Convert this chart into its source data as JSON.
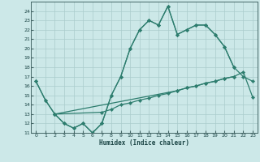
{
  "xlabel": "Humidex (Indice chaleur)",
  "x": [
    0,
    1,
    2,
    3,
    4,
    5,
    6,
    7,
    8,
    9,
    10,
    11,
    12,
    13,
    14,
    15,
    16,
    17,
    18,
    19,
    20,
    21,
    22,
    23
  ],
  "line_upper1": [
    16.5,
    14.5,
    13.0,
    12.0,
    11.5,
    12.0,
    11.0,
    12.0,
    15.0,
    17.0,
    20.0,
    22.0,
    23.0,
    22.5,
    24.5,
    21.5,
    22.0,
    22.5,
    22.5,
    21.5,
    20.2,
    18.0,
    null,
    null
  ],
  "line_upper2": [
    16.5,
    14.5,
    13.0,
    12.0,
    11.5,
    12.0,
    11.0,
    12.0,
    15.0,
    17.0,
    20.0,
    22.0,
    23.0,
    22.5,
    24.5,
    21.5,
    22.0,
    22.5,
    22.5,
    21.5,
    20.2,
    18.0,
    17.0,
    16.5
  ],
  "line_lower1": [
    null,
    null,
    13.0,
    null,
    null,
    null,
    null,
    null,
    null,
    null,
    null,
    null,
    null,
    null,
    null,
    15.5,
    15.8,
    16.0,
    16.3,
    16.5,
    16.8,
    17.0,
    null,
    null
  ],
  "line_lower2": [
    null,
    null,
    13.0,
    null,
    null,
    null,
    null,
    13.2,
    13.5,
    14.0,
    14.2,
    14.5,
    14.7,
    15.0,
    15.2,
    15.5,
    15.8,
    16.0,
    16.3,
    16.5,
    16.8,
    17.0,
    17.5,
    14.8
  ],
  "ylim": [
    11,
    25
  ],
  "xlim": [
    -0.5,
    23.5
  ],
  "yticks": [
    11,
    12,
    13,
    14,
    15,
    16,
    17,
    18,
    19,
    20,
    21,
    22,
    23,
    24
  ],
  "xticks": [
    0,
    1,
    2,
    3,
    4,
    5,
    6,
    7,
    8,
    9,
    10,
    11,
    12,
    13,
    14,
    15,
    16,
    17,
    18,
    19,
    20,
    21,
    22,
    23
  ],
  "line_color": "#2d7d6e",
  "bg_color": "#cce8e8",
  "grid_color": "#aacccc"
}
